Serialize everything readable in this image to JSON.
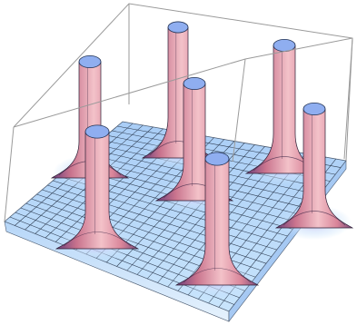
{
  "figure": {
    "kind": "3d-surface-plot",
    "peak_count": 7,
    "colors": {
      "background": "#ffffff",
      "box_line": "#9a9a9a",
      "surface_base": "#bfe0fb",
      "surface_shadow": "#8fb8ee",
      "mesh_line": "#2c3a4f",
      "peak_light": "#f3c2c9",
      "peak_mid": "#c9738d",
      "peak_dark": "#5b3a6b",
      "cap": "#8faef0"
    }
  }
}
